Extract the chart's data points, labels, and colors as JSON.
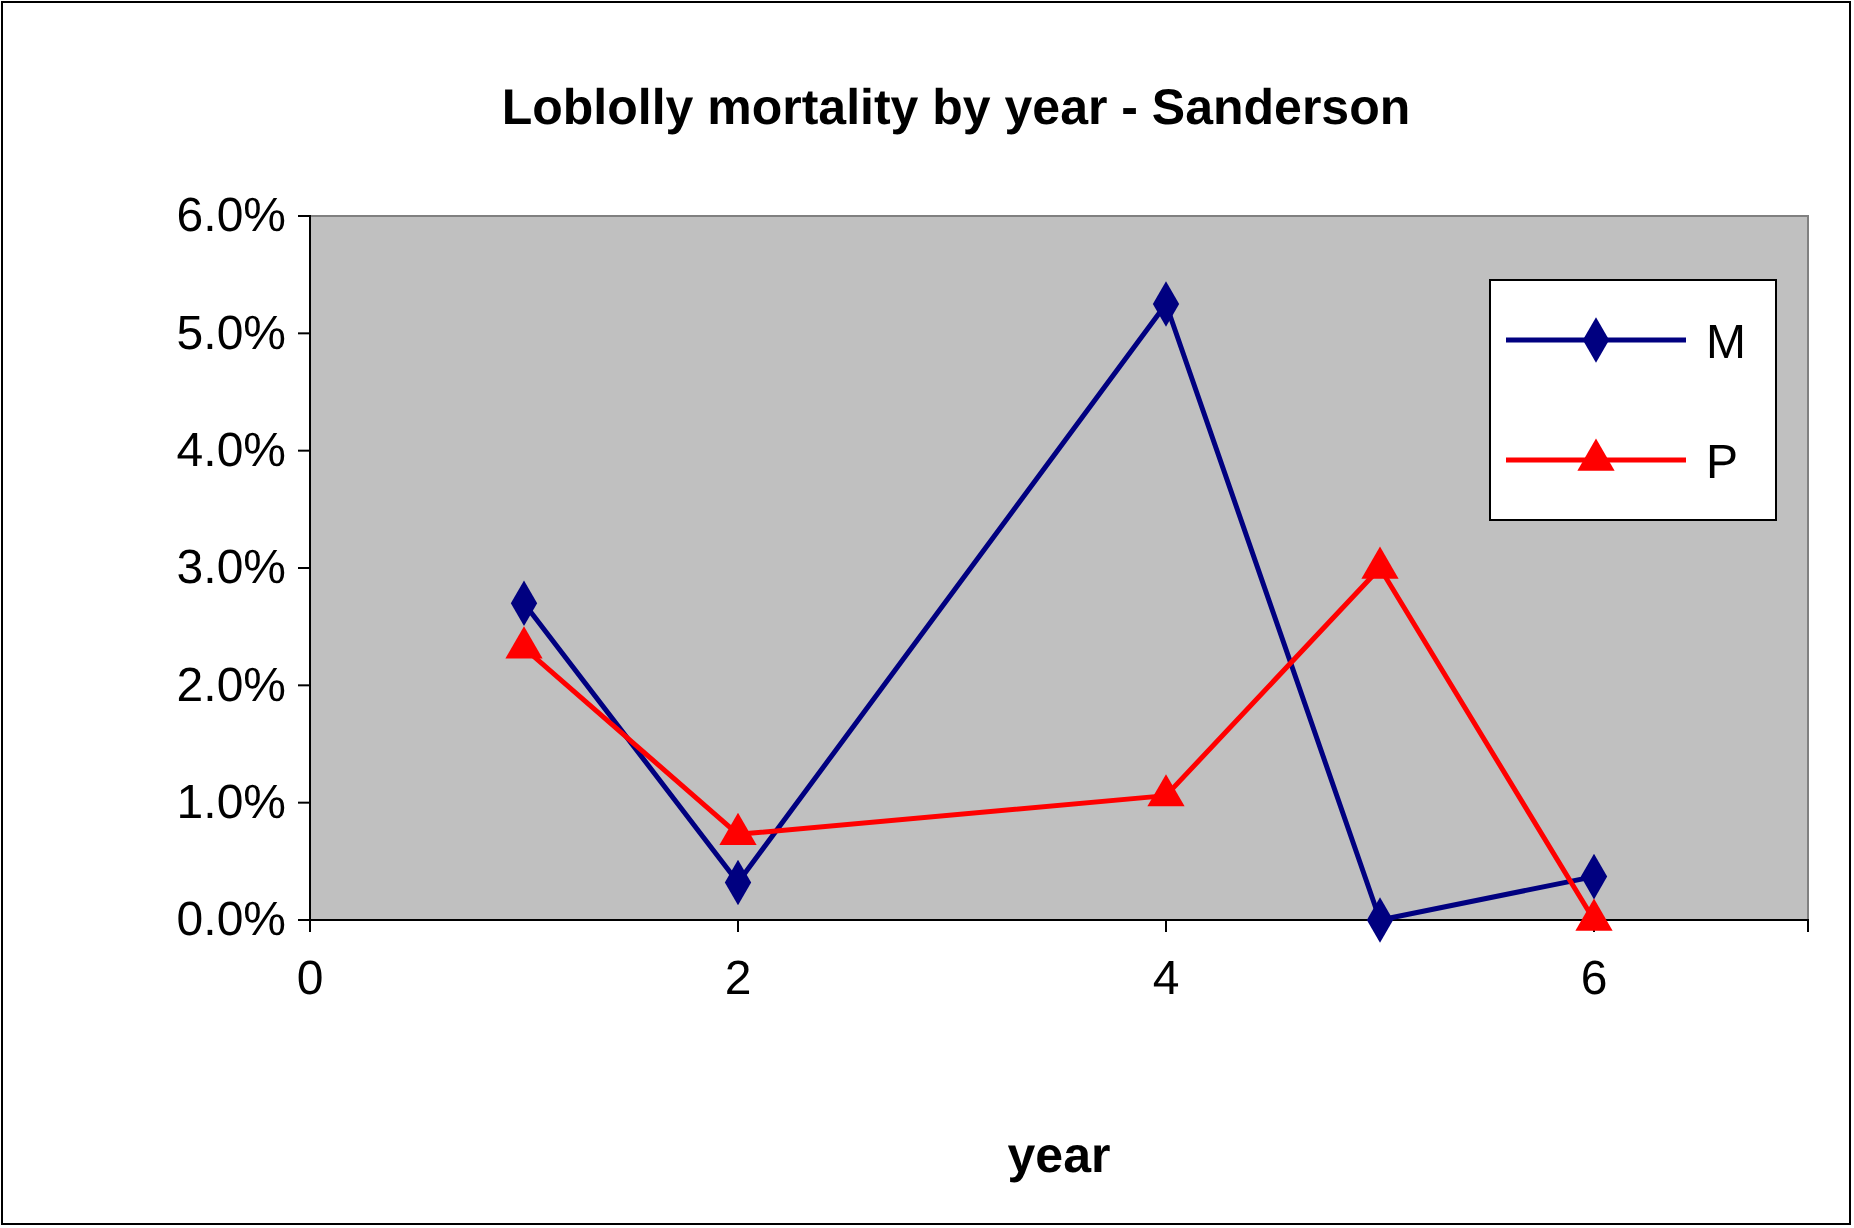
{
  "chart_data": {
    "type": "line",
    "title": "Loblolly mortality by year - Sanderson",
    "xlabel": "year",
    "xlim": [
      0,
      7
    ],
    "xticks": [
      0,
      2,
      4,
      6
    ],
    "ylim": [
      0,
      6
    ],
    "yticks": [
      {
        "value": 0,
        "label": "0.0%"
      },
      {
        "value": 1,
        "label": "1.0%"
      },
      {
        "value": 2,
        "label": "2.0%"
      },
      {
        "value": 3,
        "label": "3.0%"
      },
      {
        "value": 4,
        "label": "4.0%"
      },
      {
        "value": 5,
        "label": "5.0%"
      },
      {
        "value": 6,
        "label": "6.0%"
      }
    ],
    "grid": false,
    "legend": "top right",
    "series": [
      {
        "name": "M",
        "color": "#000080",
        "marker": "diamond",
        "x": [
          1,
          2,
          4,
          5,
          6
        ],
        "values": [
          2.7,
          0.32,
          5.25,
          0,
          0.37
        ]
      },
      {
        "name": "P",
        "color": "#ff0000",
        "marker": "triangle",
        "x": [
          1,
          2,
          4,
          5,
          6
        ],
        "values": [
          2.32,
          0.73,
          1.06,
          3.0,
          0
        ]
      }
    ]
  }
}
